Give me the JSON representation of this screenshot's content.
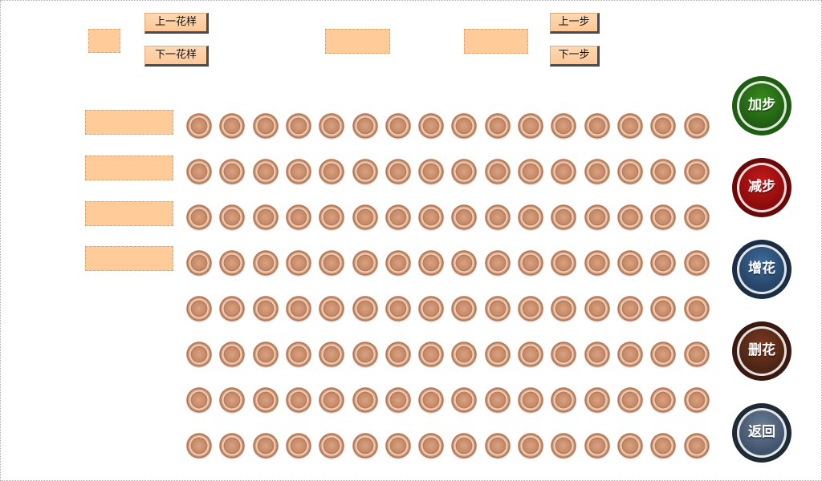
{
  "top_controls": {
    "prev_pattern_label": "上一花样",
    "next_pattern_label": "下一花样",
    "prev_step_label": "上一步",
    "next_step_label": "下一步"
  },
  "side_buttons": {
    "add_step_label": "加步",
    "reduce_step_label": "减步",
    "add_flower_label": "增花",
    "delete_flower_label": "删花",
    "back_label": "返回"
  },
  "bead_grid": {
    "rows": 8,
    "columns": 16
  },
  "colors": {
    "field_fill": "#ffcc99",
    "add_step": "#1f5e12",
    "reduce_step": "#8c0b0b",
    "add_flower": "#254466",
    "delete_flower": "#4b2414",
    "back": "#41536a"
  }
}
